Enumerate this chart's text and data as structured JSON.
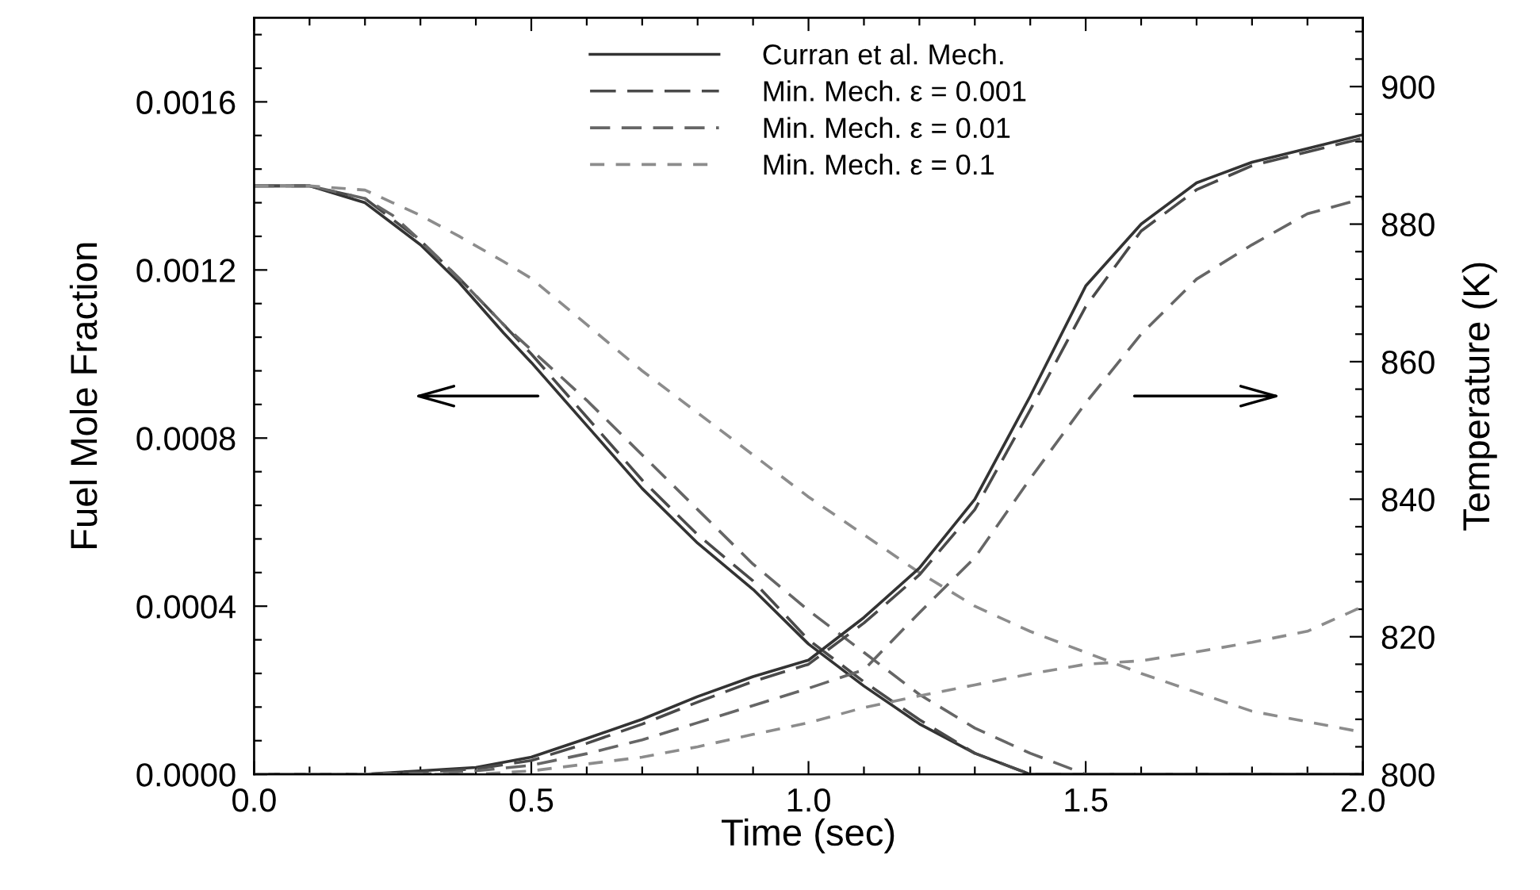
{
  "chart_data": {
    "type": "line",
    "xlabel": "Time (sec)",
    "ylabel": "Fuel Mole Fraction",
    "y2label": "Temperature (K)",
    "xlim": [
      0,
      2
    ],
    "ylim": [
      0,
      0.0018
    ],
    "y2lim": [
      800,
      910
    ],
    "xticks": [
      {
        "value": 0,
        "label": "0.0"
      },
      {
        "value": 0.1,
        "label": null
      },
      {
        "value": 0.2,
        "label": null
      },
      {
        "value": 0.3,
        "label": null
      },
      {
        "value": 0.4,
        "label": null
      },
      {
        "value": 0.5,
        "label": "0.5"
      },
      {
        "value": 0.6,
        "label": null
      },
      {
        "value": 0.7,
        "label": null
      },
      {
        "value": 0.8,
        "label": null
      },
      {
        "value": 0.9,
        "label": null
      },
      {
        "value": 1.0,
        "label": "1.0"
      },
      {
        "value": 1.1,
        "label": null
      },
      {
        "value": 1.2,
        "label": null
      },
      {
        "value": 1.3,
        "label": null
      },
      {
        "value": 1.4,
        "label": null
      },
      {
        "value": 1.5,
        "label": "1.5"
      },
      {
        "value": 1.6,
        "label": null
      },
      {
        "value": 1.7,
        "label": null
      },
      {
        "value": 1.8,
        "label": null
      },
      {
        "value": 1.9,
        "label": null
      },
      {
        "value": 2.0,
        "label": "2.0"
      }
    ],
    "yticks": [
      {
        "value": 0,
        "label": "0.0000"
      },
      {
        "value": 8e-05,
        "label": null
      },
      {
        "value": 0.00016,
        "label": null
      },
      {
        "value": 0.00024,
        "label": null
      },
      {
        "value": 0.00032,
        "label": null
      },
      {
        "value": 0.0004,
        "label": "0.0004"
      },
      {
        "value": 0.00048,
        "label": null
      },
      {
        "value": 0.00056,
        "label": null
      },
      {
        "value": 0.00064,
        "label": null
      },
      {
        "value": 0.00072,
        "label": null
      },
      {
        "value": 0.0008,
        "label": "0.0008"
      },
      {
        "value": 0.00088,
        "label": null
      },
      {
        "value": 0.00096,
        "label": null
      },
      {
        "value": 0.00104,
        "label": null
      },
      {
        "value": 0.00112,
        "label": null
      },
      {
        "value": 0.0012,
        "label": "0.0012"
      },
      {
        "value": 0.00128,
        "label": null
      },
      {
        "value": 0.00136,
        "label": null
      },
      {
        "value": 0.00144,
        "label": null
      },
      {
        "value": 0.00152,
        "label": null
      },
      {
        "value": 0.0016,
        "label": "0.0016"
      },
      {
        "value": 0.00168,
        "label": null
      },
      {
        "value": 0.00176,
        "label": null
      }
    ],
    "y2ticks": [
      800,
      {
        "value": 804,
        "label": null
      },
      {
        "value": 808,
        "label": null
      },
      {
        "value": 812,
        "label": null
      },
      {
        "value": 816,
        "label": null
      },
      820,
      {
        "value": 824,
        "label": null
      },
      {
        "value": 828,
        "label": null
      },
      {
        "value": 832,
        "label": null
      },
      {
        "value": 836,
        "label": null
      },
      840,
      {
        "value": 844,
        "label": null
      },
      {
        "value": 848,
        "label": null
      },
      {
        "value": 852,
        "label": null
      },
      {
        "value": 856,
        "label": null
      },
      860,
      {
        "value": 864,
        "label": null
      },
      {
        "value": 868,
        "label": null
      },
      {
        "value": 872,
        "label": null
      },
      {
        "value": 876,
        "label": null
      },
      880,
      {
        "value": 884,
        "label": null
      },
      {
        "value": 888,
        "label": null
      },
      {
        "value": 892,
        "label": null
      },
      {
        "value": 896,
        "label": null
      },
      900,
      {
        "value": 904,
        "label": null
      },
      {
        "value": 908,
        "label": null
      }
    ],
    "legend": "top",
    "grid": false,
    "marker": "none",
    "series": [
      {
        "name": "Curran et al. Mech.",
        "color": "#333333",
        "line_style": "solid",
        "x": [
          0,
          0.1,
          0.2,
          0.25,
          0.3,
          0.37,
          0.45,
          0.5,
          0.6,
          0.7,
          0.8,
          0.9,
          1.0,
          1.1,
          1.2,
          1.3,
          1.4,
          1.5,
          1.6,
          1.8,
          2.0
        ],
        "values": [
          0.0014,
          0.0014,
          0.00136,
          0.00131,
          0.00126,
          0.00117,
          0.00105,
          0.00098,
          0.00083,
          0.00068,
          0.00055,
          0.00044,
          0.00031,
          0.00021,
          0.00012,
          5e-05,
          0,
          0,
          0,
          0,
          0
        ]
      },
      {
        "name": "Min. Mech. ε = 0.001",
        "color": "#4a4a4a",
        "line_style": "dashed",
        "x": [
          0,
          0.1,
          0.2,
          0.25,
          0.3,
          0.37,
          0.45,
          0.5,
          0.6,
          0.7,
          0.8,
          0.9,
          1.0,
          1.1,
          1.2,
          1.3,
          1.4,
          1.5,
          1.6,
          1.8,
          2.0
        ],
        "values": [
          0.0014,
          0.0014,
          0.00137,
          0.00132,
          0.00127,
          0.00118,
          0.00107,
          0.001,
          0.00085,
          0.0007,
          0.00057,
          0.00046,
          0.00032,
          0.00022,
          0.00013,
          5e-05,
          0,
          0,
          0,
          0,
          0
        ]
      },
      {
        "name": "Min. Mech. ε = 0.01",
        "color": "#666666",
        "line_style": "dashed",
        "x": [
          0,
          0.1,
          0.2,
          0.25,
          0.3,
          0.37,
          0.45,
          0.5,
          0.6,
          0.7,
          0.8,
          0.9,
          1.0,
          1.1,
          1.2,
          1.3,
          1.4,
          1.5,
          1.6,
          1.8,
          2.0
        ],
        "values": [
          0.0014,
          0.0014,
          0.00137,
          0.00133,
          0.00127,
          0.00118,
          0.00107,
          0.00101,
          0.00089,
          0.00076,
          0.00063,
          0.0005,
          0.00039,
          0.00029,
          0.00019,
          0.00011,
          5e-05,
          0,
          0,
          0,
          0
        ]
      },
      {
        "name": "Min. Mech. ε = 0.1",
        "color": "#8c8c8c",
        "line_style": "dashed",
        "x": [
          0,
          0.1,
          0.2,
          0.25,
          0.3,
          0.37,
          0.45,
          0.5,
          0.6,
          0.7,
          0.8,
          0.9,
          1.0,
          1.1,
          1.2,
          1.3,
          1.4,
          1.5,
          1.6,
          1.8,
          2.0
        ],
        "values": [
          0.0014,
          0.0014,
          0.00139,
          0.00136,
          0.00133,
          0.00128,
          0.00122,
          0.00118,
          0.00107,
          0.00096,
          0.00086,
          0.00076,
          0.00066,
          0.00057,
          0.00048,
          0.0004,
          0.00034,
          0.00029,
          0.00024,
          0.00015,
          0.0001
        ]
      },
      {
        "color": "#333333",
        "line_style": "solid",
        "axis": "y2",
        "x": [
          0,
          0.2,
          0.3,
          0.4,
          0.5,
          0.6,
          0.7,
          0.8,
          0.9,
          1.0,
          1.1,
          1.2,
          1.3,
          1.4,
          1.5,
          1.6,
          1.7,
          1.8,
          1.9,
          2.0
        ],
        "values": [
          800,
          800,
          800.5,
          801,
          802.5,
          805.2,
          808,
          811.3,
          814.2,
          816.6,
          822.8,
          830,
          840,
          855,
          871,
          880,
          886,
          889,
          891,
          893
        ]
      },
      {
        "color": "#4a4a4a",
        "line_style": "dashed",
        "axis": "y2",
        "x": [
          0,
          0.2,
          0.3,
          0.4,
          0.5,
          0.6,
          0.7,
          0.8,
          0.9,
          1.0,
          1.1,
          1.2,
          1.3,
          1.4,
          1.5,
          1.6,
          1.7,
          1.8,
          1.9,
          2.0
        ],
        "values": [
          800,
          800,
          800.3,
          800.8,
          802,
          804.5,
          807.3,
          810.5,
          813.5,
          816,
          822,
          829,
          838.5,
          853,
          868,
          879,
          885,
          888.5,
          890.5,
          892.5
        ]
      },
      {
        "color": "#666666",
        "line_style": "dashed",
        "axis": "y2",
        "x": [
          0,
          0.2,
          0.3,
          0.4,
          0.5,
          0.6,
          0.7,
          0.8,
          0.9,
          1.0,
          1.1,
          1.2,
          1.3,
          1.4,
          1.5,
          1.6,
          1.7,
          1.8,
          1.9,
          2.0
        ],
        "values": [
          800,
          800,
          800,
          800.5,
          801.3,
          803,
          805,
          807.5,
          810,
          812.5,
          815.2,
          823.5,
          831.5,
          843,
          854,
          864,
          872,
          877,
          881.5,
          883.7
        ]
      },
      {
        "color": "#8c8c8c",
        "line_style": "dashed",
        "axis": "y2",
        "x": [
          0,
          0.4,
          0.5,
          0.6,
          0.7,
          0.8,
          0.9,
          1.0,
          1.1,
          1.2,
          1.3,
          1.4,
          1.5,
          1.6,
          1.7,
          1.8,
          1.9,
          2.0
        ],
        "values": [
          800,
          800,
          800.5,
          801.5,
          802.5,
          804,
          805.8,
          807.5,
          809.7,
          811.4,
          813,
          814.6,
          816,
          816.5,
          817.8,
          819.2,
          820.8,
          824.4
        ]
      }
    ]
  }
}
